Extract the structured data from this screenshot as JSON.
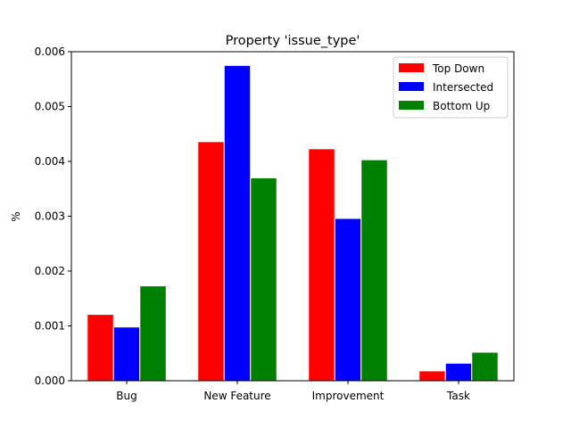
{
  "chart_data": {
    "type": "bar",
    "title": "Property 'issue_type'",
    "xlabel": "",
    "ylabel": "%",
    "categories": [
      "Bug",
      "New Feature",
      "Improvement",
      "Task"
    ],
    "series": [
      {
        "name": "Top Down",
        "color": "#ff0000",
        "values": [
          0.00121,
          0.00436,
          0.00423,
          0.00018
        ]
      },
      {
        "name": "Intersected",
        "color": "#0000ff",
        "values": [
          0.00098,
          0.00575,
          0.00296,
          0.00032
        ]
      },
      {
        "name": "Bottom Up",
        "color": "#008000",
        "values": [
          0.00173,
          0.0037,
          0.00403,
          0.00052
        ]
      }
    ],
    "ylim": [
      0,
      0.006
    ],
    "yticks": [
      "0.000",
      "0.001",
      "0.002",
      "0.003",
      "0.004",
      "0.005",
      "0.006"
    ],
    "grid": false,
    "legend_position": "top-right"
  }
}
